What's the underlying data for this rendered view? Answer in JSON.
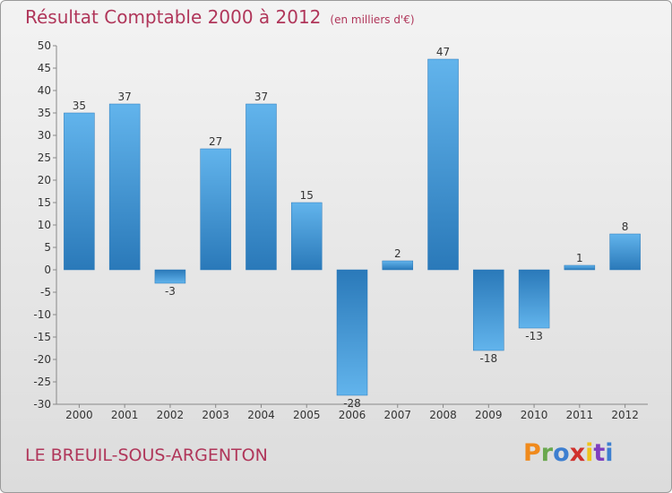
{
  "header": {
    "title": "Résultat Comptable 2000 à 2012",
    "subtitle": "(en milliers d'€)"
  },
  "footer": {
    "place": "LE BREUIL-SOUS-ARGENTON",
    "logo_text": "Proxiti"
  },
  "colors": {
    "title": "#b0365a",
    "bar_dark": "#2a79b9",
    "bar_light": "#62b4ec",
    "logo": [
      "#f08a1c",
      "#6aa84f",
      "#3d7fd0",
      "#d0312d",
      "#f0c419",
      "#7f3fbf",
      "#3d7fd0"
    ]
  },
  "chart_data": {
    "type": "bar",
    "categories": [
      "2000",
      "2001",
      "2002",
      "2003",
      "2004",
      "2005",
      "2006",
      "2007",
      "2008",
      "2009",
      "2010",
      "2011",
      "2012"
    ],
    "values": [
      35,
      37,
      -3,
      27,
      37,
      15,
      -28,
      2,
      47,
      -18,
      -13,
      1,
      8
    ],
    "value_labels": [
      "35",
      "37",
      "-3",
      "27",
      "37",
      "15",
      "-28",
      "2",
      "47",
      "-18",
      "-13",
      "1",
      "8"
    ],
    "ylim": [
      -30,
      50
    ],
    "yticks": [
      50,
      45,
      40,
      35,
      30,
      25,
      20,
      15,
      10,
      5,
      0,
      -5,
      -10,
      -15,
      -20,
      -25,
      -30
    ],
    "ytick_labels": [
      "50",
      "45",
      "40",
      "35",
      "30",
      "25",
      "20",
      "15",
      "10",
      "5",
      "0",
      "-5",
      "-10",
      "-15",
      "-20",
      "-25",
      "-30"
    ],
    "title": "Résultat Comptable 2000 à 2012",
    "xlabel": "",
    "ylabel": "",
    "grid": false
  }
}
